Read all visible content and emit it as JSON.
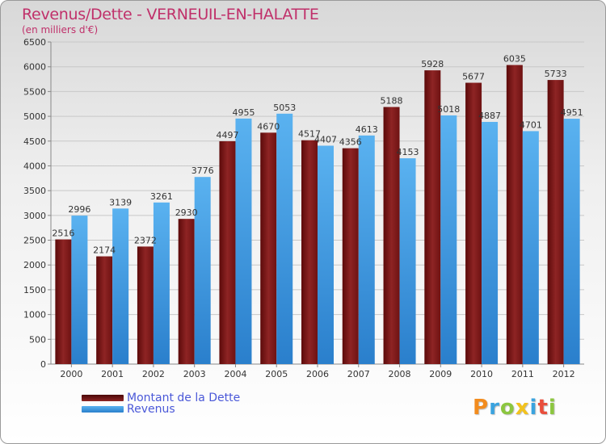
{
  "header": {
    "title": "Revenus/Dette - VERNEUIL-EN-HALATTE",
    "subtitle": "(en milliers d'€)"
  },
  "legend": {
    "items": [
      {
        "label": "Montant de la Dette",
        "color": "#7a1414"
      },
      {
        "label": "Revenus",
        "color": "#3d9be9"
      }
    ]
  },
  "logo": {
    "text": "Proxiti",
    "letters": [
      {
        "ch": "P",
        "color": "#f28c1e"
      },
      {
        "ch": "r",
        "color": "#3aa3df"
      },
      {
        "ch": "o",
        "color": "#8cc63f"
      },
      {
        "ch": "x",
        "color": "#f2c21e"
      },
      {
        "ch": "i",
        "color": "#3aa3df"
      },
      {
        "ch": "t",
        "color": "#e94e3c"
      },
      {
        "ch": "i",
        "color": "#8cc63f"
      }
    ]
  },
  "chart_data": {
    "type": "bar",
    "title": "Revenus/Dette - VERNEUIL-EN-HALATTE",
    "subtitle": "(en milliers d'€)",
    "xlabel": "",
    "ylabel": "",
    "categories": [
      "2000",
      "2001",
      "2002",
      "2003",
      "2004",
      "2005",
      "2006",
      "2007",
      "2008",
      "2009",
      "2010",
      "2011",
      "2012"
    ],
    "series": [
      {
        "name": "Montant de la Dette",
        "color": "#7a1414",
        "values": [
          2516,
          2174,
          2372,
          2930,
          4497,
          4670,
          4517,
          4356,
          5188,
          5928,
          5677,
          6035,
          5733
        ],
        "labels": [
          "2516",
          "2174",
          "2372",
          "2930",
          "4497",
          "4670",
          "4517",
          "4356",
          "5188",
          "5928",
          "5677",
          "6035",
          "5733"
        ]
      },
      {
        "name": "Revenus",
        "color": "#3d9be9",
        "values": [
          2996,
          3139,
          3261,
          3776,
          4955,
          5053,
          4407,
          4613,
          4153,
          5018,
          4887,
          4701,
          4951
        ],
        "labels": [
          "2996",
          "3139",
          "3261",
          "3776",
          "4955",
          "5053",
          "4407",
          "4613",
          "4153",
          "5018",
          "4887",
          "4701",
          "4951"
        ]
      }
    ],
    "ylim": [
      0,
      6500
    ],
    "yticks": [
      "0",
      "500",
      "1000",
      "1500",
      "2000",
      "2500",
      "3000",
      "3500",
      "4000",
      "4500",
      "5000",
      "5500",
      "6000",
      "6500"
    ],
    "grid": true,
    "legend_position": "bottom-left"
  }
}
